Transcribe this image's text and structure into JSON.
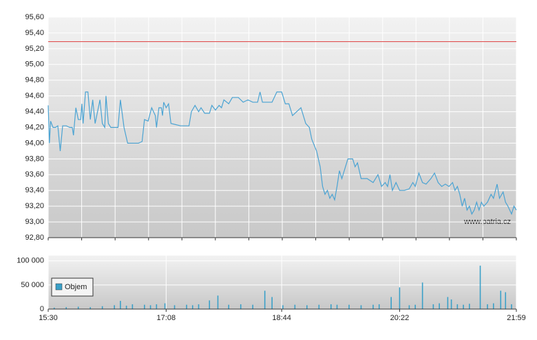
{
  "chart_data": [
    {
      "type": "line",
      "color": "#4aa3d3",
      "reference": 95.29,
      "reference_color": "#e05050",
      "watermark": "www.patria.cz",
      "xlim": [
        930,
        1319
      ],
      "xticks": [
        930,
        957.8,
        985.6,
        1013.4,
        1041.1,
        1068.9,
        1096.7,
        1124.5,
        1152.3,
        1180.1,
        1207.9,
        1235.6,
        1263.4,
        1291.2,
        1319
      ],
      "ylim": [
        92.8,
        95.6
      ],
      "yticks": [
        {
          "value": 92.8,
          "label": "92,80"
        },
        {
          "value": 93.0,
          "label": "93,00"
        },
        {
          "value": 93.2,
          "label": "93,20"
        },
        {
          "value": 93.4,
          "label": "93,40"
        },
        {
          "value": 93.6,
          "label": "93,60"
        },
        {
          "value": 93.8,
          "label": "93,80"
        },
        {
          "value": 94.0,
          "label": "94,00"
        },
        {
          "value": 94.2,
          "label": "94,20"
        },
        {
          "value": 94.4,
          "label": "94,40"
        },
        {
          "value": 94.6,
          "label": "94,60"
        },
        {
          "value": 94.8,
          "label": "94,80"
        },
        {
          "value": 95.0,
          "label": "95,00"
        },
        {
          "value": 95.2,
          "label": "95,20"
        },
        {
          "value": 95.4,
          "label": "95,40"
        },
        {
          "value": 95.6,
          "label": "95,60"
        }
      ],
      "x": [
        930,
        931,
        932,
        934,
        936,
        938,
        940,
        942,
        945,
        948,
        950,
        951,
        953,
        955,
        957,
        958,
        959,
        961,
        963,
        965,
        967,
        969,
        971,
        973,
        975,
        977,
        978,
        980,
        982,
        988,
        990,
        993,
        996,
        1005,
        1008,
        1010,
        1013,
        1016,
        1019,
        1020,
        1022,
        1024,
        1025,
        1026,
        1028,
        1030,
        1032,
        1040,
        1047,
        1049,
        1052,
        1055,
        1057,
        1060,
        1064,
        1066,
        1069,
        1072,
        1074,
        1076,
        1080,
        1083,
        1088,
        1092,
        1096,
        1100,
        1104,
        1106,
        1108,
        1116,
        1120,
        1124,
        1127,
        1130,
        1133,
        1140,
        1144,
        1147,
        1149,
        1153,
        1156,
        1158,
        1160,
        1162,
        1164,
        1166,
        1168,
        1170,
        1172,
        1174,
        1177,
        1179,
        1183,
        1185,
        1187,
        1190,
        1195,
        1200,
        1204,
        1207,
        1210,
        1212,
        1214,
        1216,
        1219,
        1222,
        1226,
        1230,
        1233,
        1235,
        1238,
        1241,
        1244,
        1248,
        1251,
        1254,
        1257,
        1260,
        1263,
        1266,
        1268,
        1270,
        1272,
        1274,
        1276,
        1278,
        1280,
        1282,
        1284,
        1286,
        1288,
        1290,
        1292,
        1295,
        1298,
        1300,
        1303,
        1305,
        1308,
        1310,
        1312,
        1315,
        1317,
        1319
      ],
      "values": [
        94.48,
        94.0,
        94.28,
        94.2,
        94.2,
        94.22,
        93.9,
        94.22,
        94.22,
        94.2,
        94.2,
        94.1,
        94.45,
        94.3,
        94.3,
        94.5,
        94.25,
        94.65,
        94.65,
        94.3,
        94.55,
        94.25,
        94.4,
        94.55,
        94.25,
        94.2,
        94.6,
        94.25,
        94.2,
        94.2,
        94.55,
        94.2,
        94.0,
        94.0,
        94.02,
        94.3,
        94.28,
        94.45,
        94.35,
        94.2,
        94.45,
        94.45,
        94.35,
        94.52,
        94.45,
        94.5,
        94.25,
        94.22,
        94.22,
        94.4,
        94.48,
        94.4,
        94.45,
        94.38,
        94.38,
        94.48,
        94.42,
        94.48,
        94.45,
        94.55,
        94.5,
        94.58,
        94.58,
        94.52,
        94.55,
        94.52,
        94.52,
        94.65,
        94.52,
        94.52,
        94.65,
        94.65,
        94.5,
        94.5,
        94.35,
        94.45,
        94.25,
        94.2,
        94.05,
        93.9,
        93.7,
        93.45,
        93.35,
        93.4,
        93.3,
        93.35,
        93.28,
        93.45,
        93.65,
        93.55,
        93.7,
        93.8,
        93.8,
        93.7,
        93.75,
        93.55,
        93.55,
        93.5,
        93.6,
        93.45,
        93.5,
        93.45,
        93.6,
        93.4,
        93.5,
        93.4,
        93.4,
        93.42,
        93.5,
        93.45,
        93.62,
        93.5,
        93.48,
        93.55,
        93.62,
        93.5,
        93.45,
        93.48,
        93.45,
        93.5,
        93.4,
        93.45,
        93.35,
        93.2,
        93.3,
        93.15,
        93.2,
        93.1,
        93.15,
        93.25,
        93.15,
        93.25,
        93.2,
        93.25,
        93.35,
        93.3,
        93.48,
        93.3,
        93.38,
        93.25,
        93.2,
        93.1,
        93.2,
        93.15
      ]
    },
    {
      "type": "bar",
      "xlim": [
        930,
        1319
      ],
      "xticks": [
        {
          "value": 930,
          "label": "15:30"
        },
        {
          "value": 1028,
          "label": "17:08"
        },
        {
          "value": 1124,
          "label": "18:44"
        },
        {
          "value": 1222,
          "label": "20:22"
        },
        {
          "value": 1319,
          "label": "21:59"
        }
      ],
      "ylim": [
        0,
        111000
      ],
      "yticks": [
        0,
        {
          "value": 50000,
          "label": "50 000"
        },
        {
          "value": 100000,
          "label": "100 000"
        }
      ],
      "x": [
        935,
        945,
        955,
        965,
        975,
        985,
        990,
        995,
        1000,
        1010,
        1015,
        1020,
        1027,
        1035,
        1045,
        1050,
        1055,
        1064,
        1071,
        1080,
        1090,
        1100,
        1110,
        1116,
        1125,
        1135,
        1145,
        1155,
        1165,
        1170,
        1180,
        1190,
        1200,
        1205,
        1215,
        1222,
        1230,
        1235,
        1241,
        1250,
        1255,
        1262,
        1265,
        1270,
        1275,
        1280,
        1289,
        1295,
        1300,
        1306,
        1310,
        1315
      ],
      "series": [
        {
          "name": "Objem",
          "color": "#3aa0c8",
          "values": [
            3000,
            4000,
            5000,
            4000,
            6000,
            8000,
            17000,
            7000,
            10000,
            9000,
            8000,
            10000,
            12000,
            8000,
            9000,
            8000,
            10000,
            18000,
            28000,
            9000,
            10000,
            9000,
            38000,
            25000,
            8000,
            9000,
            8000,
            9000,
            10000,
            9000,
            9000,
            8000,
            9000,
            10000,
            25000,
            45000,
            8000,
            9000,
            55000,
            10000,
            12000,
            25000,
            20000,
            10000,
            9000,
            11000,
            90000,
            10000,
            12000,
            38000,
            35000,
            10000
          ]
        }
      ]
    }
  ]
}
